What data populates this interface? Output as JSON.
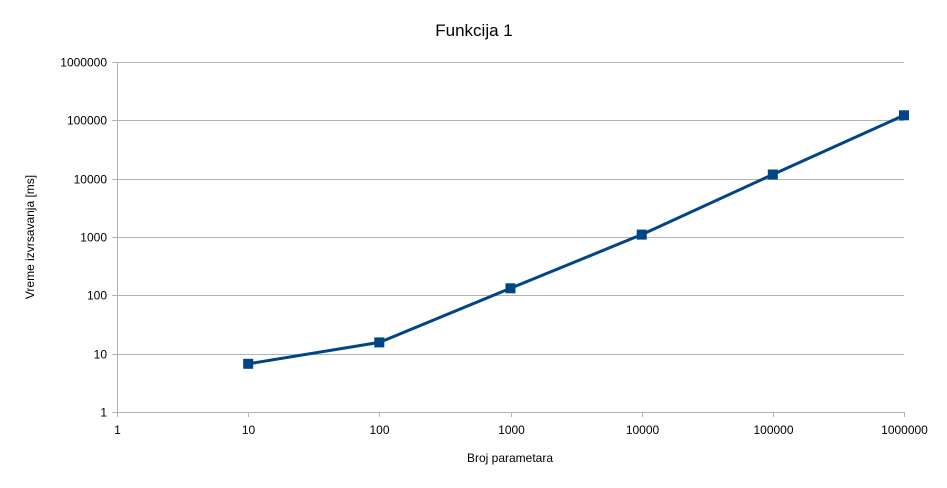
{
  "chart_data": {
    "type": "line",
    "title": "Funkcija 1",
    "xlabel": "Broj parametara",
    "ylabel": "Vreme izvrsavanja [ms]",
    "x_scale": "log",
    "y_scale": "log",
    "xlim": [
      1,
      1000000
    ],
    "ylim": [
      1,
      1000000
    ],
    "x_ticks": [
      "1",
      "10",
      "100",
      "1000",
      "10000",
      "100000",
      "1000000"
    ],
    "y_ticks": [
      "1",
      "10",
      "100",
      "1000",
      "10000",
      "100000",
      "1000000"
    ],
    "grid": true,
    "legend": "none",
    "series": [
      {
        "color": "#004586",
        "marker": "square",
        "x": [
          10,
          100,
          1000,
          10000,
          100000,
          1000000
        ],
        "y": [
          6.7,
          15.6,
          132,
          1100,
          11800,
          122000
        ]
      }
    ]
  }
}
